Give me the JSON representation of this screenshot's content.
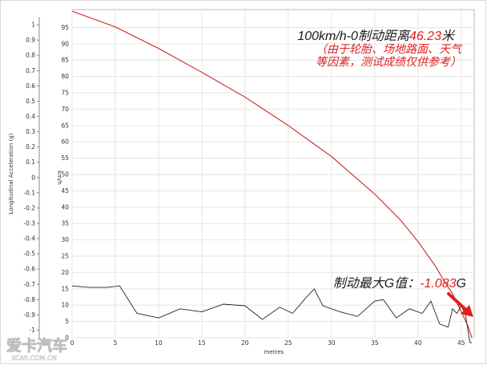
{
  "chart_data": {
    "type": "line",
    "xlabel": "metres",
    "y_left_label": "Longitudinal Acceleration (g)",
    "y_right_label": "km/h",
    "x_ticks": [
      0,
      5,
      10,
      15,
      20,
      25,
      30,
      35,
      40,
      45
    ],
    "x_range": [
      0,
      46.5
    ],
    "y_left_ticks": [
      "1",
      "0.9",
      "0.8",
      "0.7",
      "0.6",
      "0.5",
      "0.4",
      "0.3",
      "0.2",
      "0.1",
      "0",
      "-0.1",
      "-0.2",
      "-0.3",
      "-0.4",
      "-0.5",
      "-0.6",
      "-0.7",
      "-0.8",
      "-0.9",
      "-1"
    ],
    "y_left_range": [
      -1.05,
      1.1
    ],
    "y_right_ticks": [
      95,
      90,
      85,
      80,
      75,
      70,
      65,
      60,
      55,
      50,
      45,
      40,
      35,
      30,
      25,
      20,
      15,
      10,
      5,
      0
    ],
    "y_right_range": [
      0,
      100.5
    ],
    "grid": true,
    "series": [
      {
        "axis": "right",
        "color": "#cc2222",
        "x": [
          0,
          5,
          10,
          15,
          20,
          25,
          30,
          35,
          38,
          40,
          42,
          43,
          44,
          45,
          45.8,
          46.23
        ],
        "y": [
          100,
          95.2,
          88.6,
          81.3,
          73.7,
          65.0,
          55.5,
          44.0,
          36.0,
          29.5,
          22.0,
          17.5,
          13.5,
          8.0,
          3.5,
          0
        ]
      },
      {
        "axis": "left",
        "color": "#222222",
        "x": [
          0,
          2,
          4,
          5.5,
          7.5,
          10,
          12.5,
          15,
          17.5,
          20,
          22,
          24,
          25.5,
          27,
          28,
          29,
          31,
          33,
          35,
          36,
          37.5,
          39,
          40.5,
          41.5,
          42.5,
          43.5,
          44,
          44.5,
          45,
          45.5,
          46,
          46.23
        ],
        "y": [
          -0.71,
          -0.72,
          -0.72,
          -0.71,
          -0.89,
          -0.92,
          -0.86,
          -0.88,
          -0.83,
          -0.84,
          -0.93,
          -0.85,
          -0.89,
          -0.79,
          -0.73,
          -0.84,
          -0.88,
          -0.91,
          -0.81,
          -0.8,
          -0.92,
          -0.86,
          -0.89,
          -0.81,
          -0.96,
          -0.98,
          -0.86,
          -0.89,
          -0.84,
          -0.9,
          -1.08,
          -1.083
        ]
      }
    ]
  },
  "annotations": {
    "line1_prefix": "100km/h-0制动距离",
    "line1_value": "46.23",
    "line1_suffix": "米",
    "note_line1": "（由于轮胎、场地路面、天气",
    "note_line2": "等因素，测试成绩仅供参考）",
    "g_prefix": "制动最大G值：",
    "g_value": "-1.083",
    "g_suffix": "G",
    "arrow_color": "#e02020",
    "highlight_color": "#e02020"
  },
  "watermark": {
    "logo_text": "爱卡汽车",
    "site_text": "XCAR.COM.CN"
  }
}
